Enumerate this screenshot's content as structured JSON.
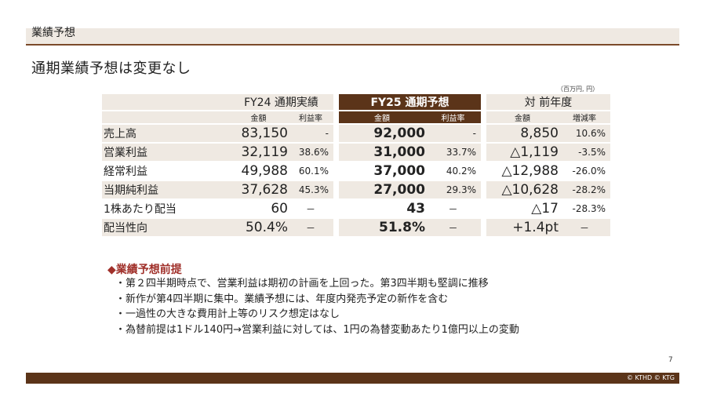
{
  "header": {
    "section_label": "業績予想"
  },
  "headline": "通期業績予想は変更なし",
  "unit_note": "（百万円, 円）",
  "table": {
    "groups": [
      "FY24 通期実績",
      "FY25 通期予想",
      "対 前年度"
    ],
    "subheads": [
      "金額",
      "利益率",
      "金額",
      "利益率",
      "金額",
      "増減率"
    ],
    "rows": [
      {
        "label": "売上高",
        "fy24_amount": "83,150",
        "fy24_margin": "-",
        "fy25_amount": "92,000",
        "fy25_margin": "-",
        "yoy_amount": "8,850",
        "yoy_rate": "10.6%"
      },
      {
        "label": "営業利益",
        "fy24_amount": "32,119",
        "fy24_margin": "38.6%",
        "fy25_amount": "31,000",
        "fy25_margin": "33.7%",
        "yoy_amount": "△1,119",
        "yoy_rate": "-3.5%"
      },
      {
        "label": "経常利益",
        "fy24_amount": "49,988",
        "fy24_margin": "60.1%",
        "fy25_amount": "37,000",
        "fy25_margin": "40.2%",
        "yoy_amount": "△12,988",
        "yoy_rate": "-26.0%"
      },
      {
        "label": "当期純利益",
        "fy24_amount": "37,628",
        "fy24_margin": "45.3%",
        "fy25_amount": "27,000",
        "fy25_margin": "29.3%",
        "yoy_amount": "△10,628",
        "yoy_rate": "-28.2%"
      },
      {
        "label": "1株あたり配当",
        "fy24_amount": "60",
        "fy24_margin": "－",
        "fy25_amount": "43",
        "fy25_margin": "－",
        "yoy_amount": "△17",
        "yoy_rate": "-28.3%"
      },
      {
        "label": "配当性向",
        "fy24_amount": "50.4%",
        "fy24_margin": "－",
        "fy25_amount": "51.8%",
        "fy25_margin": "－",
        "yoy_amount": "+1.4pt",
        "yoy_rate": "－"
      }
    ]
  },
  "premise": {
    "title": "◆業績予想前提",
    "bullets": [
      "・第２四半期時点で、営業利益は期初の計画を上回った。第3四半期も堅調に推移",
      "・新作が第4四半期に集中。業績予想には、年度内発売予定の新作を含む",
      "・一過性の大きな費用計上等のリスク想定はなし",
      "・為替前提は1ドル140円→営業利益に対しては、1円の為替変動あたり1億円以上の変動"
    ]
  },
  "page_number": "7",
  "copyright": "© KTHD © KTG",
  "colors": {
    "accent_brown": "#5b3419",
    "band_beige": "#efe9e2",
    "premise_red": "#a0302a"
  }
}
